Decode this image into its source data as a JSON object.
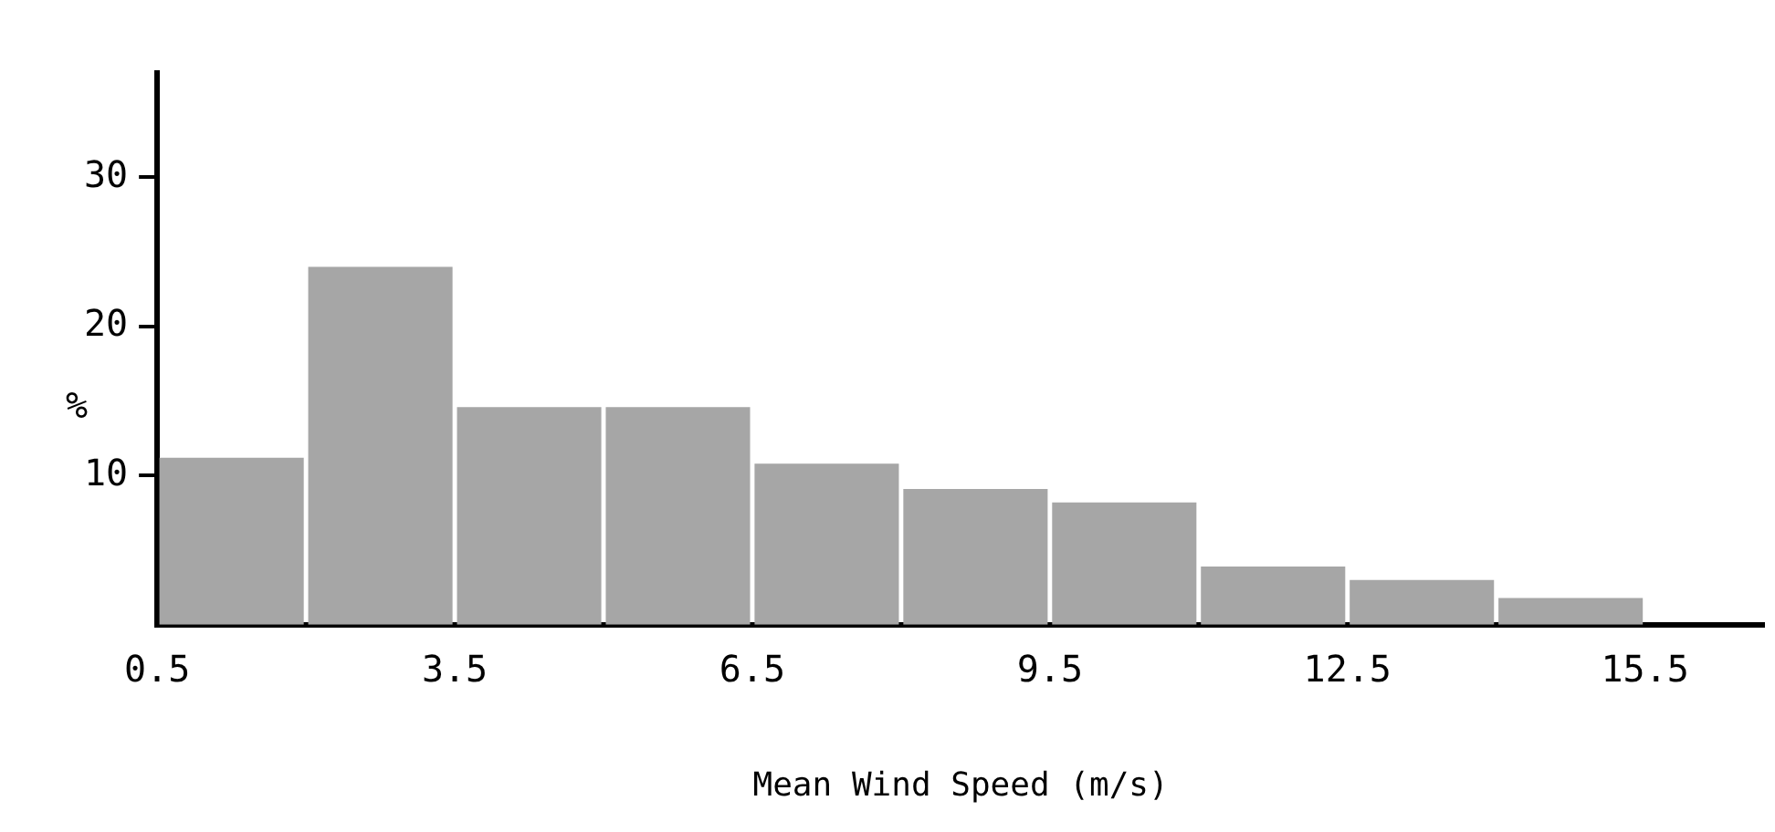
{
  "chart_data": {
    "type": "histogram",
    "xlabel": "Mean Wind Speed (m/s)",
    "ylabel": "%",
    "bins": [
      0.5,
      2,
      3.5,
      5,
      6.5,
      8,
      9.5,
      11,
      12.5,
      14,
      15.5
    ],
    "values": [
      11.2,
      24,
      14.6,
      14.6,
      10.8,
      9.1,
      8.2,
      3.9,
      3.0,
      1.8
    ],
    "color": "#a6a6a6",
    "xlim": [
      0.5,
      16.7
    ],
    "xticks": [
      0.5,
      3.5,
      6.5,
      9.5,
      12.5,
      15.5
    ],
    "ylim": [
      0,
      37
    ],
    "yticks": [
      10,
      20,
      30
    ],
    "grid": false,
    "legend": false
  }
}
